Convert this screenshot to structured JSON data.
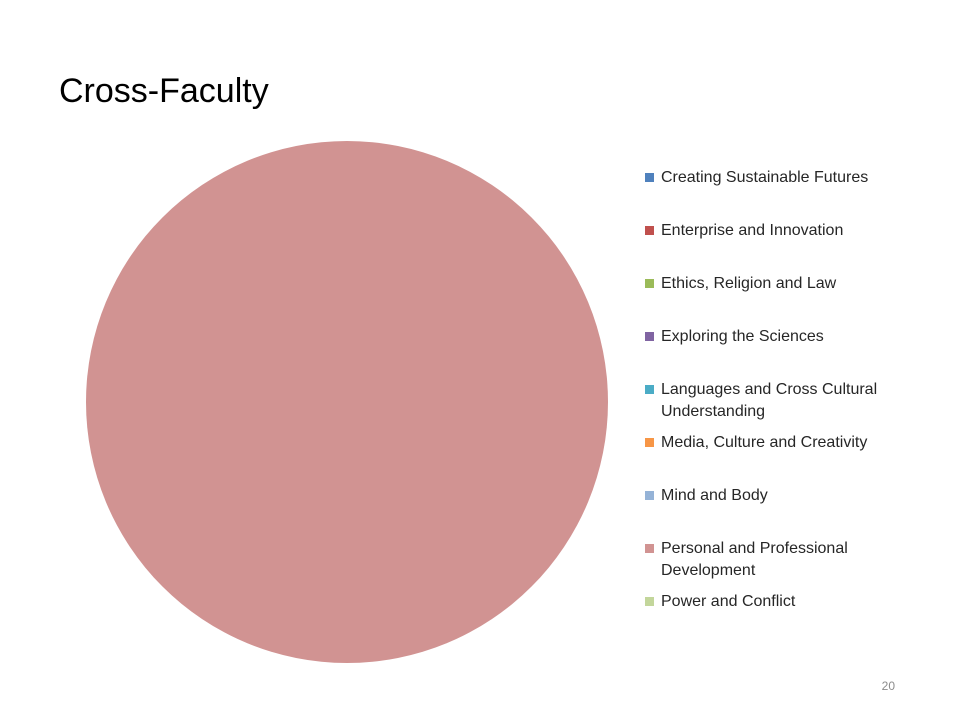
{
  "chart_data": {
    "type": "pie",
    "title": "Cross-Faculty",
    "categories": [
      "Creating Sustainable Futures",
      "Enterprise and Innovation",
      "Ethics, Religion and Law",
      "Exploring the Sciences",
      "Languages and Cross Cultural Understanding",
      "Media, Culture and Creativity",
      "Mind and Body",
      "Personal and Professional Development",
      "Power and Conflict"
    ],
    "values": [
      0,
      0,
      0,
      0,
      0,
      0,
      0,
      100,
      0
    ],
    "colors": [
      "#4f81bd",
      "#c0504d",
      "#9bbb59",
      "#8064a2",
      "#4bacc6",
      "#f79646",
      "#95b3d7",
      "#d19392",
      "#c3d69b"
    ],
    "legend": "right"
  },
  "slide_number": "20"
}
